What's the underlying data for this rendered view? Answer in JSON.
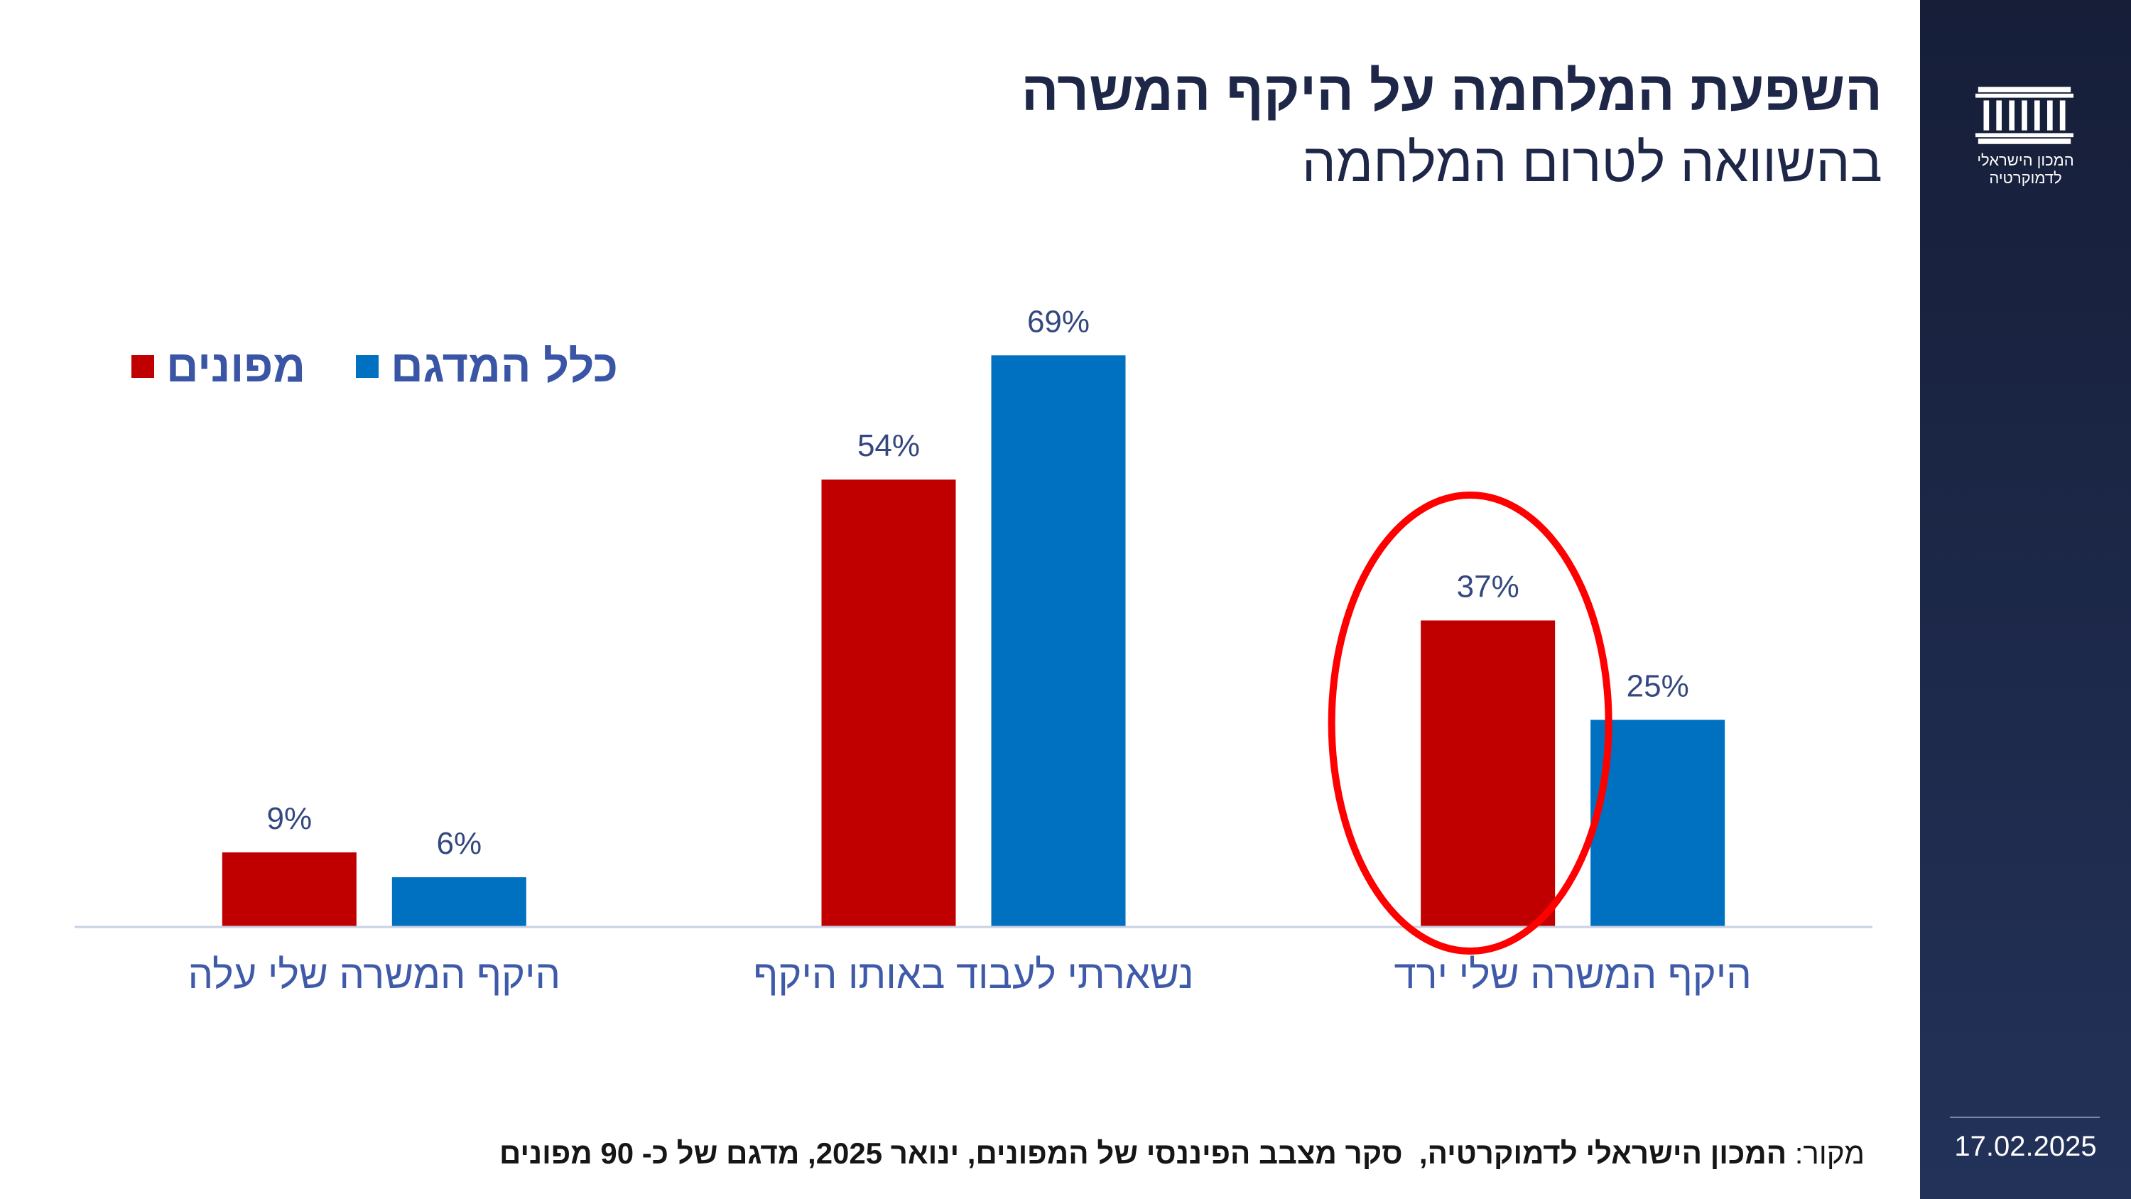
{
  "slide": {
    "source_label": "מקור:",
    "source_text": "המכון הישראלי לדמוקרטיה,  סקר מצבב הפיננסי של המפונים, ינואר 2025, מדגם של כ- 90 מפונים",
    "date": "17.02.2025"
  },
  "sidebar": {
    "logo_icon": "building-columns-icon",
    "logo_line1": "המכון הישראלי",
    "logo_line2": "לדמוקרטיה",
    "background_top": "#161e38",
    "background_bottom": "#233259"
  },
  "chart_data": {
    "type": "bar",
    "title": "השפעת המלחמה על היקף המשרה",
    "subtitle": "בהשוואה לטרום המלחמה",
    "categories": [
      "היקף המשרה שלי ירד",
      "נשארתי לעבוד באותו היקף",
      "היקף המשרה שלי עלה"
    ],
    "series": [
      {
        "name": "כלל המדגם",
        "color": "#0070c0",
        "values": [
          25,
          69,
          6
        ],
        "labels": [
          "25%",
          "69%",
          "6%"
        ]
      },
      {
        "name": "מפונים",
        "color": "#c00000",
        "values": [
          37,
          54,
          9
        ],
        "labels": [
          "37%",
          "54%",
          "9%"
        ]
      }
    ],
    "xlabel": "",
    "ylabel": "",
    "ylim": [
      0,
      80
    ],
    "x_reversed": true,
    "grid": false,
    "y_axis_visible": false,
    "legend_position": "top-left",
    "highlight": {
      "category_index": 0,
      "series_index": 1,
      "color": "#ff0000"
    }
  }
}
